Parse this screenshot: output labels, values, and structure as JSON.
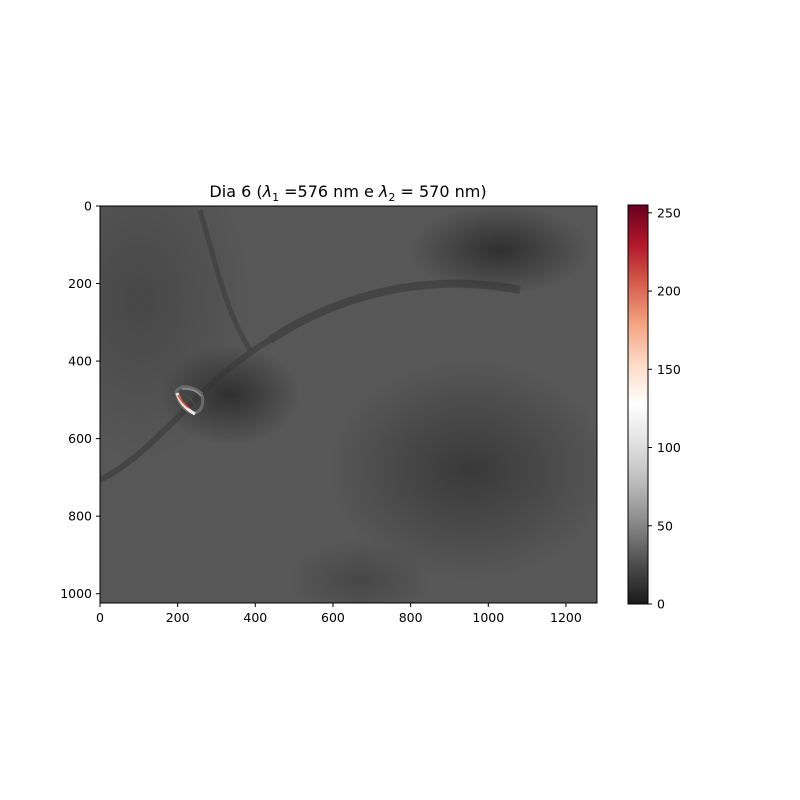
{
  "chart_data": {
    "type": "heatmap",
    "title": {
      "prefix": "Dia 6 (",
      "lambda": "λ",
      "sub1": "1",
      "mid": " =576 nm e ",
      "sub2": "2",
      "suffix": " = 570 nm)"
    },
    "xlabel": "",
    "ylabel": "",
    "xlim": [
      0,
      1280
    ],
    "ylim": [
      1024,
      0
    ],
    "x_ticks": [
      0,
      200,
      400,
      600,
      800,
      1000,
      1200
    ],
    "y_ticks": [
      0,
      200,
      400,
      600,
      800,
      1000
    ],
    "colorbar": {
      "range": [
        0,
        255
      ],
      "ticks": [
        0,
        50,
        100,
        150,
        200,
        250
      ],
      "colormap": "RdGy_r",
      "stops": [
        "#1a1a1a",
        "#4d4d4d",
        "#878787",
        "#bababa",
        "#e0e0e0",
        "#ffffff",
        "#fddbc7",
        "#f4a582",
        "#d6604d",
        "#b2182b",
        "#67001f"
      ]
    },
    "image": {
      "background_value": 30,
      "features": [
        {
          "kind": "bright-ring",
          "x": 220,
          "y": 505,
          "max_value": 255
        }
      ]
    }
  }
}
